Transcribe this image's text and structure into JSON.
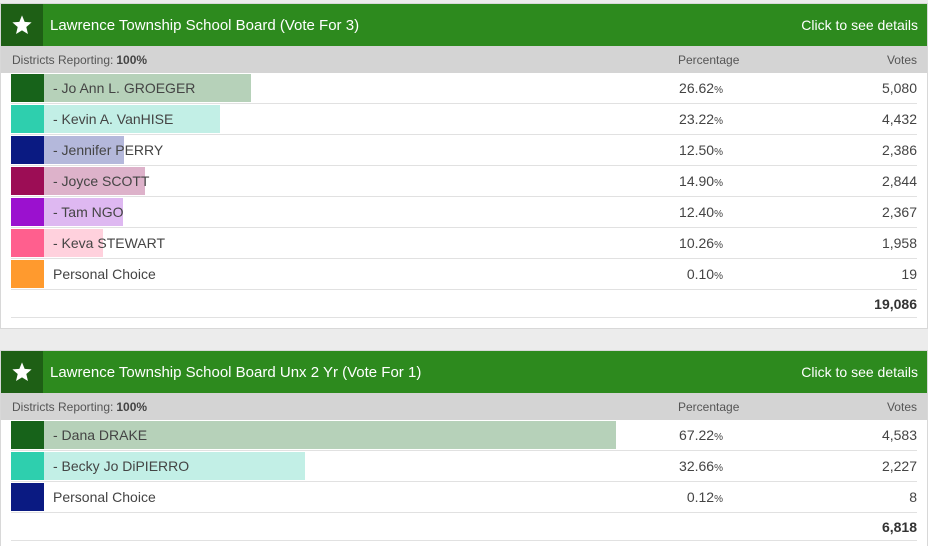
{
  "colors": {
    "header_bg": "#2d8a1e",
    "star_box_bg": "#1e5f15",
    "subheader_bg": "#d4d4d4"
  },
  "races": [
    {
      "title": "Lawrence Township School Board (Vote For 3)",
      "details_link": "Click to see details",
      "districts_label": "Districts Reporting:",
      "districts_value": "100%",
      "pct_header": "Percentage",
      "votes_header": "Votes",
      "candidates": [
        {
          "name": "- Jo Ann L. GROEGER",
          "pct": "26.62",
          "pct_symbol": "%",
          "votes": "5,080",
          "share": 0.2662,
          "swatch": "#17631a",
          "bar": "#b6d1b9"
        },
        {
          "name": "- Kevin A. VanHISE",
          "pct": "23.22",
          "pct_symbol": "%",
          "votes": "4,432",
          "share": 0.2322,
          "swatch": "#2ecfae",
          "bar": "#c2efe6"
        },
        {
          "name": "- Jennifer PERRY",
          "pct": "12.50",
          "pct_symbol": "%",
          "votes": "2,386",
          "share": 0.125,
          "swatch": "#0a1a82",
          "bar": "#b4b8db"
        },
        {
          "name": "- Joyce SCOTT",
          "pct": "14.90",
          "pct_symbol": "%",
          "votes": "2,844",
          "share": 0.149,
          "swatch": "#9c0d55",
          "bar": "#ddb2ca"
        },
        {
          "name": "- Tam NGO",
          "pct": "12.40",
          "pct_symbol": "%",
          "votes": "2,367",
          "share": 0.124,
          "swatch": "#9b11cf",
          "bar": "#deb8f1"
        },
        {
          "name": "- Keva STEWART",
          "pct": "10.26",
          "pct_symbol": "%",
          "votes": "1,958",
          "share": 0.1026,
          "swatch": "#ff5f8e",
          "bar": "#ffd1dd"
        },
        {
          "name": "Personal Choice",
          "pct": "0.10",
          "pct_symbol": "%",
          "votes": "19",
          "share": 0.001,
          "swatch": "#ff9a2e",
          "bar": "#ffe1c2"
        }
      ],
      "total_votes": "19,086"
    },
    {
      "title": "Lawrence Township School Board Unx 2 Yr (Vote For 1)",
      "details_link": "Click to see details",
      "districts_label": "Districts Reporting:",
      "districts_value": "100%",
      "pct_header": "Percentage",
      "votes_header": "Votes",
      "candidates": [
        {
          "name": "- Dana DRAKE",
          "pct": "67.22",
          "pct_symbol": "%",
          "votes": "4,583",
          "share": 0.6722,
          "swatch": "#17631a",
          "bar": "#b6d1b9"
        },
        {
          "name": "- Becky Jo DiPIERRO",
          "pct": "32.66",
          "pct_symbol": "%",
          "votes": "2,227",
          "share": 0.3266,
          "swatch": "#2ecfae",
          "bar": "#c2efe6"
        },
        {
          "name": "Personal Choice",
          "pct": "0.12",
          "pct_symbol": "%",
          "votes": "8",
          "share": 0.0012,
          "swatch": "#0a1a82",
          "bar": "#b4b8db"
        }
      ],
      "total_votes": "6,818"
    }
  ]
}
